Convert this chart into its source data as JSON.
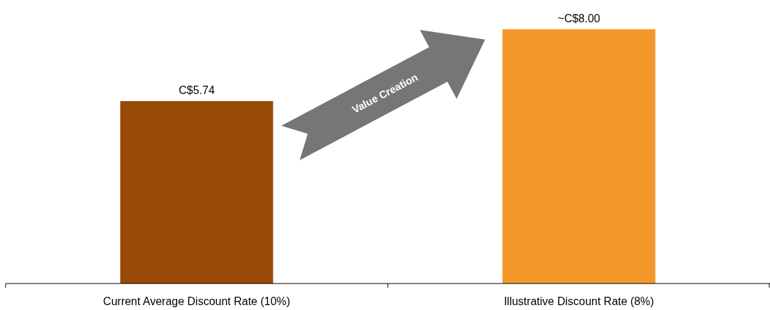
{
  "chart_data": {
    "type": "bar",
    "categories": [
      "Current Average Discount Rate (10%)",
      "Illustrative Discount Rate (8%)"
    ],
    "values": [
      5.74,
      8.0
    ],
    "colors": [
      "#994a07",
      "#f4982c"
    ],
    "value_labels": [
      "C$5.74",
      "~C$8.00"
    ],
    "annotations": [
      "Value Creation"
    ]
  }
}
